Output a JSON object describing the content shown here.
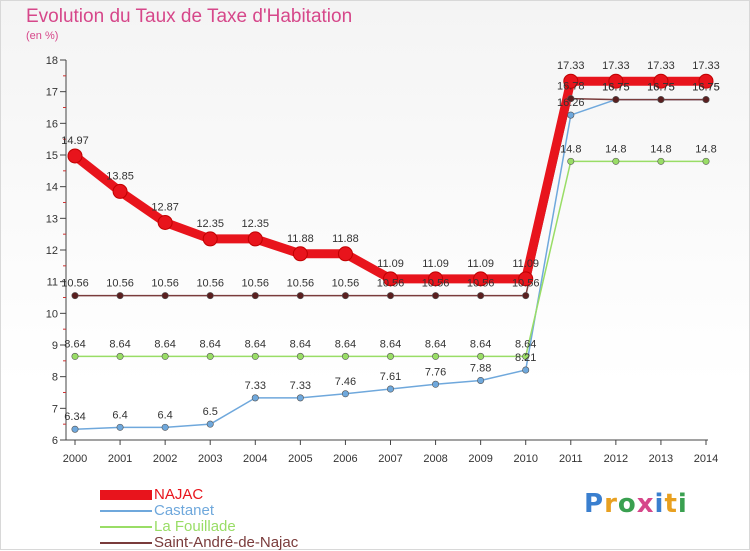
{
  "header": {
    "title": "Evolution du Taux de Taxe d'Habitation",
    "subtitle": "(en %)"
  },
  "logo": {
    "letters": [
      "P",
      "r",
      "o",
      "x",
      "i",
      "t",
      "i"
    ],
    "colors": [
      "#3a7fcf",
      "#e8a020",
      "#3aa050",
      "#d6478a",
      "#3a7fcf",
      "#e8a020",
      "#3aa050"
    ]
  },
  "chart_data": {
    "type": "line",
    "title": "Evolution du Taux de Taxe d'Habitation",
    "subtitle": "(en %)",
    "xlabel": "",
    "ylabel": "",
    "ylim": [
      6,
      18
    ],
    "yticks": [
      6,
      7,
      8,
      9,
      10,
      11,
      12,
      13,
      14,
      15,
      16,
      17,
      18
    ],
    "grid": false,
    "legend": "bottom-left",
    "x": [
      "2000",
      "2001",
      "2002",
      "2003",
      "2004",
      "2005",
      "2006",
      "2007",
      "2008",
      "2009",
      "2010",
      "2011",
      "2012",
      "2013",
      "2014"
    ],
    "series": [
      {
        "name": "NAJAC",
        "color": "#e8141c",
        "values": [
          14.97,
          13.85,
          12.87,
          12.35,
          12.35,
          11.88,
          11.88,
          11.09,
          11.09,
          11.09,
          11.09,
          17.33,
          17.33,
          17.33,
          17.33
        ],
        "labels": [
          "14.97",
          "13.85",
          "12.87",
          "12.35",
          "12.35",
          "11.88",
          "11.88",
          "11.09",
          "11.09",
          "11.09",
          "11.09",
          "17.33",
          "17.33",
          "17.33",
          "17.33"
        ]
      },
      {
        "name": "Castanet",
        "color": "#6fa8dc",
        "values": [
          6.34,
          6.4,
          6.4,
          6.5,
          7.33,
          7.33,
          7.46,
          7.61,
          7.76,
          7.88,
          8.21,
          16.26,
          16.75,
          16.75,
          16.75
        ],
        "labels": [
          "6.34",
          "6.4",
          "6.4",
          "6.5",
          "7.33",
          "7.33",
          "7.46",
          "7.61",
          "7.76",
          "7.88",
          "8.21",
          "16.26",
          "16.75",
          "16.75",
          "16.75"
        ]
      },
      {
        "name": "La Fouillade",
        "color": "#99dd66",
        "values": [
          8.64,
          8.64,
          8.64,
          8.64,
          8.64,
          8.64,
          8.64,
          8.64,
          8.64,
          8.64,
          8.64,
          14.8,
          14.8,
          14.8,
          14.8
        ],
        "labels": [
          "8.64",
          "8.64",
          "8.64",
          "8.64",
          "8.64",
          "8.64",
          "8.64",
          "8.64",
          "8.64",
          "8.64",
          "8.64",
          "14.8",
          "14.8",
          "14.8",
          "14.8"
        ]
      },
      {
        "name": "Saint-André-de-Najac",
        "color": "#7a3b3b",
        "values": [
          10.56,
          10.56,
          10.56,
          10.56,
          10.56,
          10.56,
          10.56,
          10.56,
          10.56,
          10.56,
          10.56,
          16.78,
          16.75,
          16.75,
          16.75
        ],
        "labels": [
          "10.56",
          "10.56",
          "10.56",
          "10.56",
          "10.56",
          "10.56",
          "10.56",
          "10.56",
          "10.56",
          "10.56",
          "10.56",
          "16.78",
          "16.75",
          "16.75",
          "16.75"
        ]
      }
    ]
  }
}
